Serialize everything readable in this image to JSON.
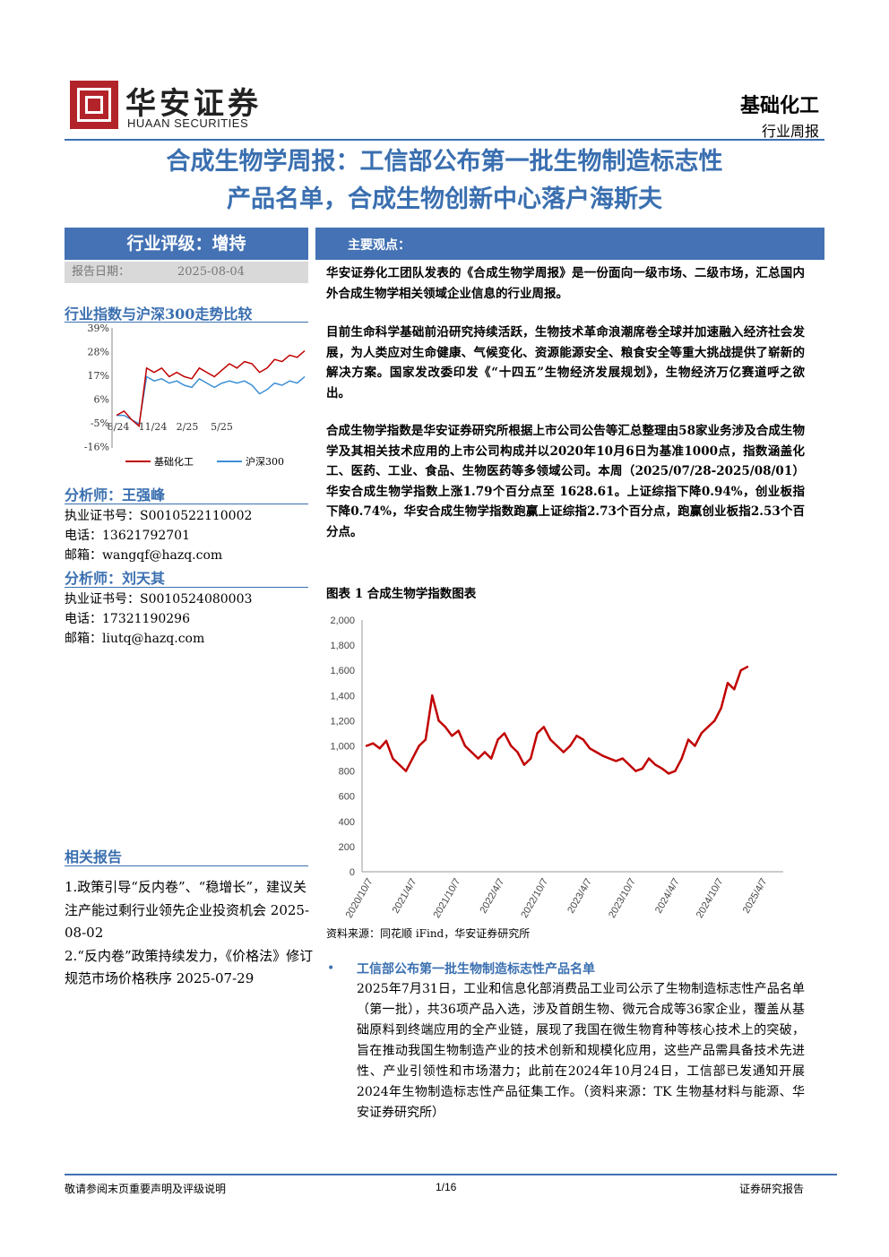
{
  "header": {
    "logo_cn": "华安证券",
    "logo_en": "HUAAN SECURITIES",
    "industry": "基础化工",
    "report_type": "行业周报"
  },
  "title_lines": [
    "合成生物学周报：工信部公布第一批生物制造标志性",
    "产品名单，合成生物创新中心落户海斯夫"
  ],
  "rating": "行业评级：增持",
  "report_date_label": "报告日期：",
  "report_date": "2025-08-04",
  "main_views_label": "主要观点：",
  "index_compare_title": "行业指数与沪深300走势比较",
  "small_chart": {
    "y_ticks": [
      "39%",
      "28%",
      "17%",
      "6%",
      "-5%",
      "-16%"
    ],
    "x_ticks": [
      "8/24",
      "11/24",
      "2/25",
      "5/25"
    ],
    "legend": [
      "基础化工",
      "沪深300"
    ],
    "colors": {
      "sector": "#c00000",
      "index": "#3c8fd6"
    }
  },
  "analysts": [
    {
      "title": "分析师：王强峰",
      "cert": "执业证书号：S0010522110002",
      "phone": "电话：13621792701",
      "email": "邮箱：wangqf@hazq.com"
    },
    {
      "title": "分析师：刘天其",
      "cert": "执业证书号：S0010524080003",
      "phone": "电话：17321190296",
      "email": "邮箱：liutq@hazq.com"
    }
  ],
  "related_title": "相关报告",
  "related_reports": [
    "1.政策引导“反内卷”、“稳增长”，建议关注产能过剩行业领先企业投资机会 2025-08-02",
    "2.“反内卷”政策持续发力，《价格法》修订规范市场价格秩序 2025-07-29"
  ],
  "paragraphs": [
    "华安证券化工团队发表的《合成生物学周报》是一份面向一级市场、二级市场，汇总国内外合成生物学相关领域企业信息的行业周报。",
    "目前生命科学基础前沿研究持续活跃，生物技术革命浪潮席卷全球并加速融入经济社会发展，为人类应对生命健康、气候变化、资源能源安全、粮食安全等重大挑战提供了崭新的解决方案。国家发改委印发《“十四五”生物经济发展规划》，生物经济万亿赛道呼之欲出。",
    "合成生物学指数是华安证券研究所根据上市公司公告等汇总整理由58家业务涉及合成生物学及其相关技术应用的上市公司构成并以2020年10月6日为基准1000点，指数涵盖化工、医药、工业、食品、生物医药等多领域公司。本周（2025/07/28-2025/08/01）华安合成生物学指数上涨1.79个百分点至 1628.61。上证综指下降0.94%，创业板指下降0.74%，华安合成生物学指数跑赢上证综指2.73个百分点，跑赢创业板指2.53个百分点。"
  ],
  "chart_caption": "图表 1 合成生物学指数图表",
  "chart_data": {
    "type": "line",
    "title": "",
    "xlabel": "",
    "ylabel": "",
    "ylim": [
      0,
      2000
    ],
    "y_ticks": [
      "0",
      "200",
      "400",
      "600",
      "800",
      "1,000",
      "1,200",
      "1,400",
      "1,600",
      "1,800",
      "2,000"
    ],
    "x_ticks": [
      "2020/10/7",
      "2021/4/7",
      "2021/10/7",
      "2022/4/7",
      "2022/10/7",
      "2023/4/7",
      "2023/10/7",
      "2024/4/7",
      "2024/10/7",
      "2025/4/7"
    ],
    "x": [
      "2020/10/7",
      "2020/11/7",
      "2020/12/7",
      "2021/1/7",
      "2021/2/7",
      "2021/3/7",
      "2021/4/7",
      "2021/5/7",
      "2021/6/7",
      "2021/7/7",
      "2021/8/7",
      "2021/9/7",
      "2021/10/7",
      "2021/11/7",
      "2021/12/7",
      "2022/1/7",
      "2022/2/7",
      "2022/3/7",
      "2022/4/7",
      "2022/5/7",
      "2022/6/7",
      "2022/7/7",
      "2022/8/7",
      "2022/9/7",
      "2022/10/7",
      "2022/11/7",
      "2022/12/7",
      "2023/1/7",
      "2023/2/7",
      "2023/3/7",
      "2023/4/7",
      "2023/5/7",
      "2023/6/7",
      "2023/7/7",
      "2023/8/7",
      "2023/9/7",
      "2023/10/7",
      "2023/11/7",
      "2023/12/7",
      "2024/1/7",
      "2024/2/7",
      "2024/3/7",
      "2024/4/7",
      "2024/5/7",
      "2024/6/7",
      "2024/7/7",
      "2024/8/7",
      "2024/9/7",
      "2024/10/7",
      "2024/11/7",
      "2024/12/7",
      "2025/1/7",
      "2025/2/7",
      "2025/3/7",
      "2025/4/7",
      "2025/5/7",
      "2025/6/7",
      "2025/7/7",
      "2025/8/1"
    ],
    "values": [
      1000,
      1020,
      980,
      1040,
      900,
      850,
      800,
      900,
      1000,
      1050,
      1400,
      1200,
      1150,
      1080,
      1120,
      1000,
      950,
      900,
      950,
      900,
      1050,
      1100,
      1000,
      950,
      850,
      900,
      1100,
      1150,
      1050,
      1000,
      950,
      1000,
      1080,
      1050,
      980,
      950,
      920,
      900,
      880,
      900,
      850,
      800,
      820,
      900,
      850,
      820,
      780,
      800,
      900,
      1050,
      1000,
      1100,
      1150,
      1200,
      1300,
      1500,
      1450,
      1600,
      1628
    ]
  },
  "chart_source": "资料来源：同花顺 iFind，华安证券研究所",
  "bullet": {
    "title": "工信部公布第一批生物制造标志性产品名单",
    "text": "2025年7月31日，工业和信息化部消费品工业司公示了生物制造标志性产品名单（第一批），共36项产品入选，涉及首朗生物、微元合成等36家企业，覆盖从基础原料到终端应用的全产业链，展现了我国在微生物育种等核心技术上的突破，旨在推动我国生物制造产业的技术创新和规模化应用，这些产品需具备技术先进性、产业引领性和市场潜力；此前在2024年10月24日，工信部已发通知开展2024年生物制造标志性产品征集工作。（资料来源：TK 生物基材料与能源、华安证券研究所）"
  },
  "footer": {
    "left": "敬请参阅末页重要声明及评级说明",
    "center": "1/16",
    "right": "证券研究报告"
  }
}
